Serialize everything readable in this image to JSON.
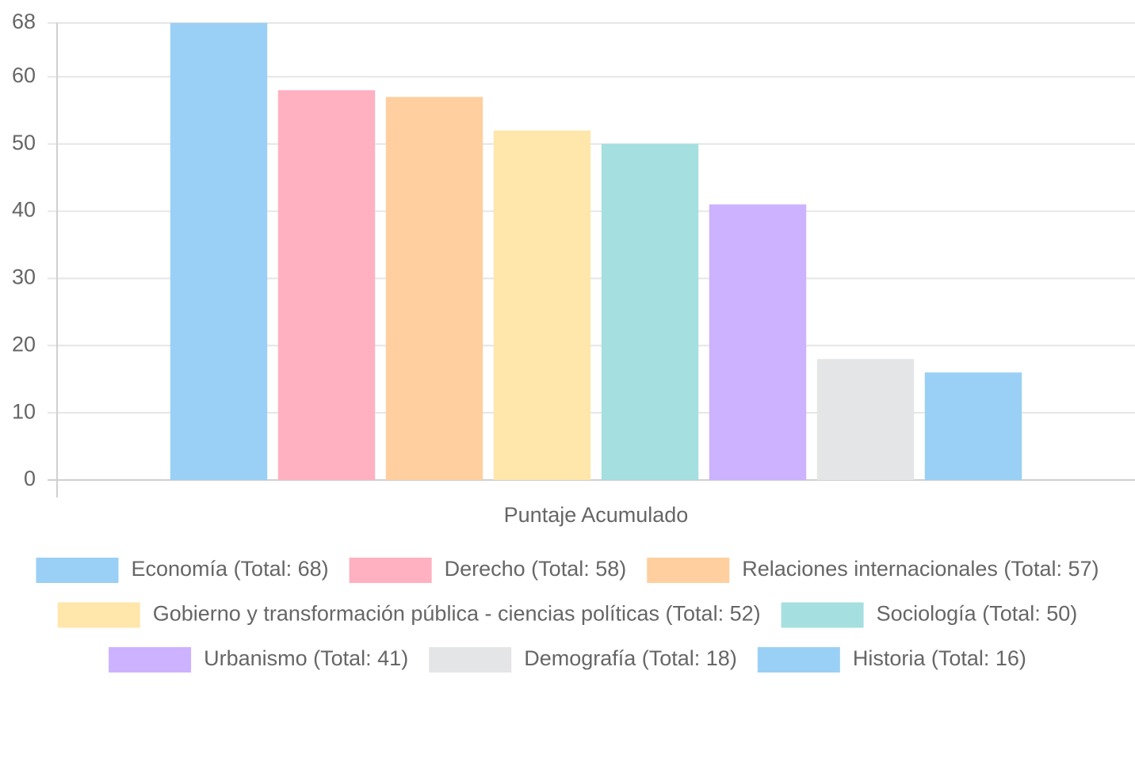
{
  "chart_data": {
    "type": "bar",
    "categories": [
      "Puntaje Acumulado"
    ],
    "series": [
      {
        "name": "Economía (Total: 68)",
        "color": "#9ad0f5",
        "values": [
          68
        ]
      },
      {
        "name": "Derecho (Total: 58)",
        "color": "#ffb1c1",
        "values": [
          58
        ]
      },
      {
        "name": "Relaciones internacionales (Total: 57)",
        "color": "#ffcf9f",
        "values": [
          57
        ]
      },
      {
        "name": "Gobierno y transformación pública - ciencias políticas (Total: 52)",
        "color": "#ffe6aa",
        "values": [
          52
        ]
      },
      {
        "name": "Sociología (Total: 50)",
        "color": "#a5dfdf",
        "values": [
          50
        ]
      },
      {
        "name": "Urbanismo (Total: 41)",
        "color": "#ccb2ff",
        "values": [
          41
        ]
      },
      {
        "name": "Demografía (Total: 18)",
        "color": "#e4e5e7",
        "values": [
          18
        ]
      },
      {
        "name": "Historia (Total: 16)",
        "color": "#9ad0f5",
        "values": [
          16
        ]
      }
    ],
    "ylim": [
      0,
      68
    ],
    "yticks": [
      0,
      10,
      20,
      30,
      40,
      50,
      60,
      68
    ],
    "grid": true,
    "legend": "bottom"
  }
}
